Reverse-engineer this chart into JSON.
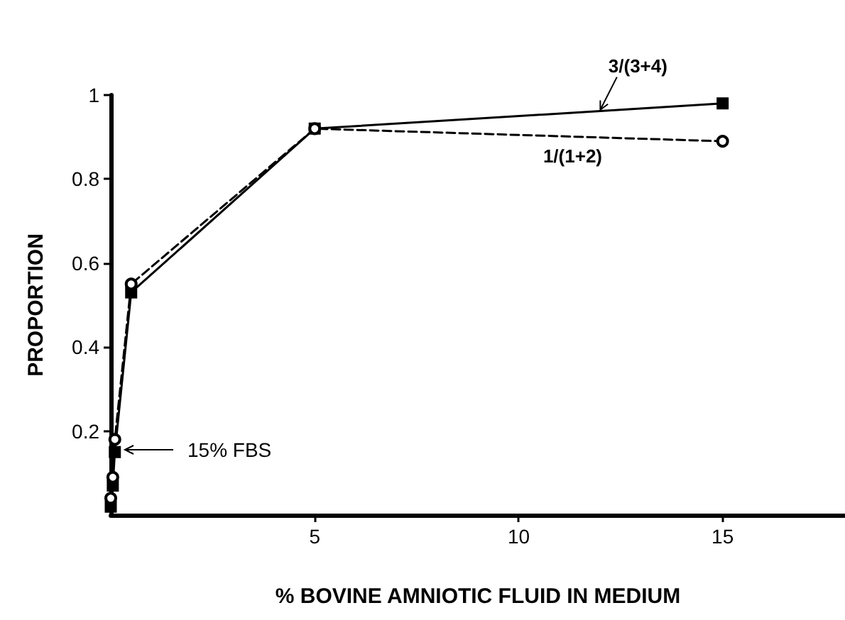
{
  "chart_data": {
    "type": "line",
    "xlabel": "% BOVINE AMNIOTIC FLUID IN MEDIUM",
    "ylabel": "PROPORTION",
    "xlim": [
      0,
      18
    ],
    "xticks": [
      5,
      10,
      15
    ],
    "ylim": [
      0,
      1.0
    ],
    "yticks": [
      0.2,
      0.4,
      0.6,
      0.8,
      1.0
    ],
    "grid": false,
    "legend": false,
    "series": [
      {
        "name": "3/(3+4)",
        "color": "#000000",
        "marker": "square",
        "line_style": "solid",
        "x": [
          0,
          0.05,
          0.1,
          0.5,
          5,
          15
        ],
        "values": [
          0.02,
          0.07,
          0.15,
          0.53,
          0.92,
          0.98
        ]
      },
      {
        "name": "1/(1+2)",
        "color": "#000000",
        "marker": "circle",
        "line_style": "dashed",
        "x": [
          0,
          0.05,
          0.1,
          0.5,
          5,
          15
        ],
        "values": [
          0.04,
          0.09,
          0.18,
          0.55,
          0.92,
          0.89
        ]
      }
    ],
    "annotations": [
      "15% FBS"
    ]
  }
}
